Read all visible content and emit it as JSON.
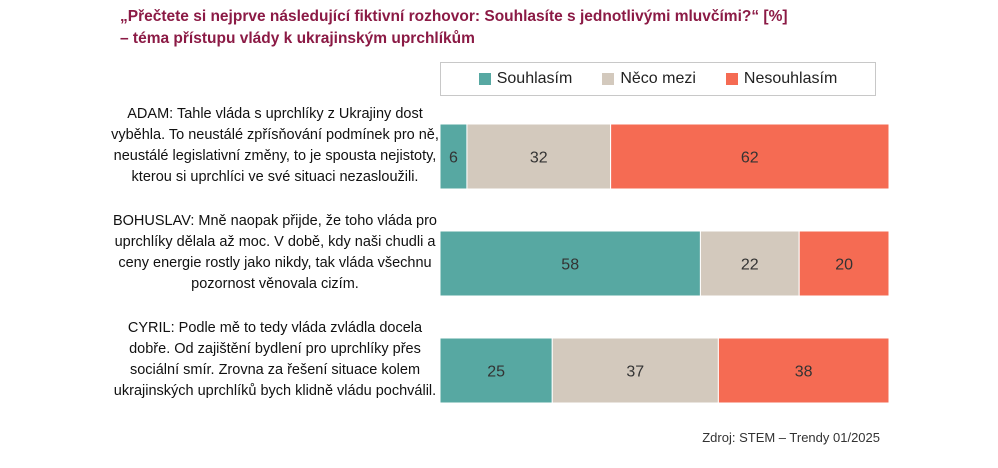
{
  "title_line1": "„Přečtete si nejprve následující fiktivní rozhovor: Souhlasíte s jednotlivými mluvčími?“ [%]",
  "title_line2": "– téma přístupu vlády k ukrajinským uprchlíkům",
  "source": "Zdroj: STEM – Trendy 01/2025",
  "chart_data": {
    "type": "bar",
    "orientation": "horizontal",
    "stacked": true,
    "xlim": [
      0,
      100
    ],
    "legend_position": "top",
    "categories": [
      "ADAM: Tahle vláda s uprchlíky z Ukrajiny dost vyběhla. To neustálé zpřísňování podmínek pro ně, neustálé legislativní změny, to je spousta nejistoty, kterou si uprchlíci ve své situaci nezasloužili.",
      "BOHUSLAV: Mně naopak přijde, že toho vláda pro uprchlíky dělala až moc. V době, kdy naši chudli a ceny energie rostly jako nikdy, tak vláda všechnu pozornost věnovala cizím.",
      "CYRIL: Podle mě to tedy vláda zvládla docela dobře. Od zajištění bydlení pro uprchlíky přes sociální smír. Zrovna za řešení situace kolem ukrajinských uprchlíků bych klidně vládu pochválil."
    ],
    "series": [
      {
        "name": "Souhlasím",
        "color": "#57a8a2",
        "values": [
          6,
          58,
          25
        ]
      },
      {
        "name": "Něco mezi",
        "color": "#d3c9bd",
        "values": [
          32,
          22,
          37
        ]
      },
      {
        "name": "Nesouhlasím",
        "color": "#f56b53",
        "values": [
          62,
          20,
          38
        ]
      }
    ]
  }
}
